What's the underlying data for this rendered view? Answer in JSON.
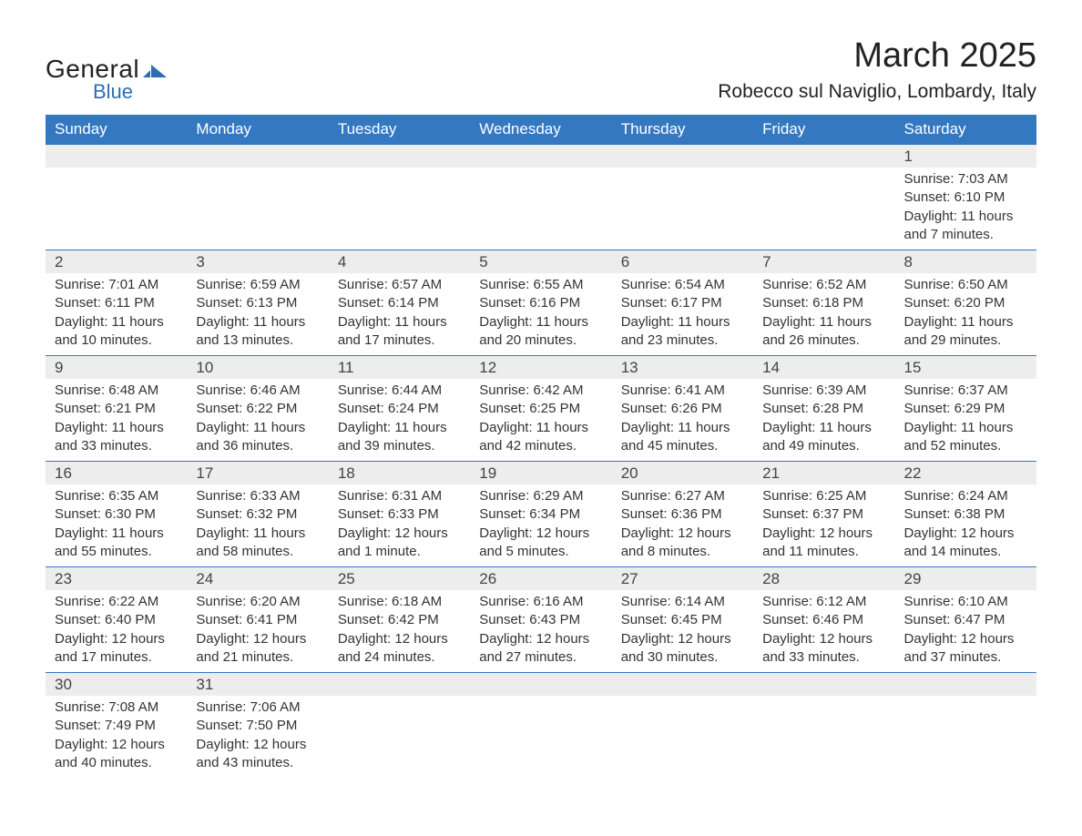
{
  "logo": {
    "text_general": "General",
    "text_blue": "Blue",
    "icon_color": "#2c6db5"
  },
  "title": "March 2025",
  "location": "Robecco sul Naviglio, Lombardy, Italy",
  "colors": {
    "header_bg": "#3578c2",
    "header_text": "#ffffff",
    "daynum_bg": "#ededed",
    "border": "#3578c2",
    "body_text": "#333333",
    "background": "#ffffff"
  },
  "fonts": {
    "family": "Arial",
    "month_title_size_pt": 28,
    "location_size_pt": 16,
    "weekday_size_pt": 13,
    "daynum_size_pt": 13,
    "body_size_pt": 11
  },
  "weekdays": [
    "Sunday",
    "Monday",
    "Tuesday",
    "Wednesday",
    "Thursday",
    "Friday",
    "Saturday"
  ],
  "weeks": [
    [
      null,
      null,
      null,
      null,
      null,
      null,
      {
        "n": "1",
        "sunrise": "Sunrise: 7:03 AM",
        "sunset": "Sunset: 6:10 PM",
        "daylight": "Daylight: 11 hours and 7 minutes."
      }
    ],
    [
      {
        "n": "2",
        "sunrise": "Sunrise: 7:01 AM",
        "sunset": "Sunset: 6:11 PM",
        "daylight": "Daylight: 11 hours and 10 minutes."
      },
      {
        "n": "3",
        "sunrise": "Sunrise: 6:59 AM",
        "sunset": "Sunset: 6:13 PM",
        "daylight": "Daylight: 11 hours and 13 minutes."
      },
      {
        "n": "4",
        "sunrise": "Sunrise: 6:57 AM",
        "sunset": "Sunset: 6:14 PM",
        "daylight": "Daylight: 11 hours and 17 minutes."
      },
      {
        "n": "5",
        "sunrise": "Sunrise: 6:55 AM",
        "sunset": "Sunset: 6:16 PM",
        "daylight": "Daylight: 11 hours and 20 minutes."
      },
      {
        "n": "6",
        "sunrise": "Sunrise: 6:54 AM",
        "sunset": "Sunset: 6:17 PM",
        "daylight": "Daylight: 11 hours and 23 minutes."
      },
      {
        "n": "7",
        "sunrise": "Sunrise: 6:52 AM",
        "sunset": "Sunset: 6:18 PM",
        "daylight": "Daylight: 11 hours and 26 minutes."
      },
      {
        "n": "8",
        "sunrise": "Sunrise: 6:50 AM",
        "sunset": "Sunset: 6:20 PM",
        "daylight": "Daylight: 11 hours and 29 minutes."
      }
    ],
    [
      {
        "n": "9",
        "sunrise": "Sunrise: 6:48 AM",
        "sunset": "Sunset: 6:21 PM",
        "daylight": "Daylight: 11 hours and 33 minutes."
      },
      {
        "n": "10",
        "sunrise": "Sunrise: 6:46 AM",
        "sunset": "Sunset: 6:22 PM",
        "daylight": "Daylight: 11 hours and 36 minutes."
      },
      {
        "n": "11",
        "sunrise": "Sunrise: 6:44 AM",
        "sunset": "Sunset: 6:24 PM",
        "daylight": "Daylight: 11 hours and 39 minutes."
      },
      {
        "n": "12",
        "sunrise": "Sunrise: 6:42 AM",
        "sunset": "Sunset: 6:25 PM",
        "daylight": "Daylight: 11 hours and 42 minutes."
      },
      {
        "n": "13",
        "sunrise": "Sunrise: 6:41 AM",
        "sunset": "Sunset: 6:26 PM",
        "daylight": "Daylight: 11 hours and 45 minutes."
      },
      {
        "n": "14",
        "sunrise": "Sunrise: 6:39 AM",
        "sunset": "Sunset: 6:28 PM",
        "daylight": "Daylight: 11 hours and 49 minutes."
      },
      {
        "n": "15",
        "sunrise": "Sunrise: 6:37 AM",
        "sunset": "Sunset: 6:29 PM",
        "daylight": "Daylight: 11 hours and 52 minutes."
      }
    ],
    [
      {
        "n": "16",
        "sunrise": "Sunrise: 6:35 AM",
        "sunset": "Sunset: 6:30 PM",
        "daylight": "Daylight: 11 hours and 55 minutes."
      },
      {
        "n": "17",
        "sunrise": "Sunrise: 6:33 AM",
        "sunset": "Sunset: 6:32 PM",
        "daylight": "Daylight: 11 hours and 58 minutes."
      },
      {
        "n": "18",
        "sunrise": "Sunrise: 6:31 AM",
        "sunset": "Sunset: 6:33 PM",
        "daylight": "Daylight: 12 hours and 1 minute."
      },
      {
        "n": "19",
        "sunrise": "Sunrise: 6:29 AM",
        "sunset": "Sunset: 6:34 PM",
        "daylight": "Daylight: 12 hours and 5 minutes."
      },
      {
        "n": "20",
        "sunrise": "Sunrise: 6:27 AM",
        "sunset": "Sunset: 6:36 PM",
        "daylight": "Daylight: 12 hours and 8 minutes."
      },
      {
        "n": "21",
        "sunrise": "Sunrise: 6:25 AM",
        "sunset": "Sunset: 6:37 PM",
        "daylight": "Daylight: 12 hours and 11 minutes."
      },
      {
        "n": "22",
        "sunrise": "Sunrise: 6:24 AM",
        "sunset": "Sunset: 6:38 PM",
        "daylight": "Daylight: 12 hours and 14 minutes."
      }
    ],
    [
      {
        "n": "23",
        "sunrise": "Sunrise: 6:22 AM",
        "sunset": "Sunset: 6:40 PM",
        "daylight": "Daylight: 12 hours and 17 minutes."
      },
      {
        "n": "24",
        "sunrise": "Sunrise: 6:20 AM",
        "sunset": "Sunset: 6:41 PM",
        "daylight": "Daylight: 12 hours and 21 minutes."
      },
      {
        "n": "25",
        "sunrise": "Sunrise: 6:18 AM",
        "sunset": "Sunset: 6:42 PM",
        "daylight": "Daylight: 12 hours and 24 minutes."
      },
      {
        "n": "26",
        "sunrise": "Sunrise: 6:16 AM",
        "sunset": "Sunset: 6:43 PM",
        "daylight": "Daylight: 12 hours and 27 minutes."
      },
      {
        "n": "27",
        "sunrise": "Sunrise: 6:14 AM",
        "sunset": "Sunset: 6:45 PM",
        "daylight": "Daylight: 12 hours and 30 minutes."
      },
      {
        "n": "28",
        "sunrise": "Sunrise: 6:12 AM",
        "sunset": "Sunset: 6:46 PM",
        "daylight": "Daylight: 12 hours and 33 minutes."
      },
      {
        "n": "29",
        "sunrise": "Sunrise: 6:10 AM",
        "sunset": "Sunset: 6:47 PM",
        "daylight": "Daylight: 12 hours and 37 minutes."
      }
    ],
    [
      {
        "n": "30",
        "sunrise": "Sunrise: 7:08 AM",
        "sunset": "Sunset: 7:49 PM",
        "daylight": "Daylight: 12 hours and 40 minutes."
      },
      {
        "n": "31",
        "sunrise": "Sunrise: 7:06 AM",
        "sunset": "Sunset: 7:50 PM",
        "daylight": "Daylight: 12 hours and 43 minutes."
      },
      null,
      null,
      null,
      null,
      null
    ]
  ]
}
